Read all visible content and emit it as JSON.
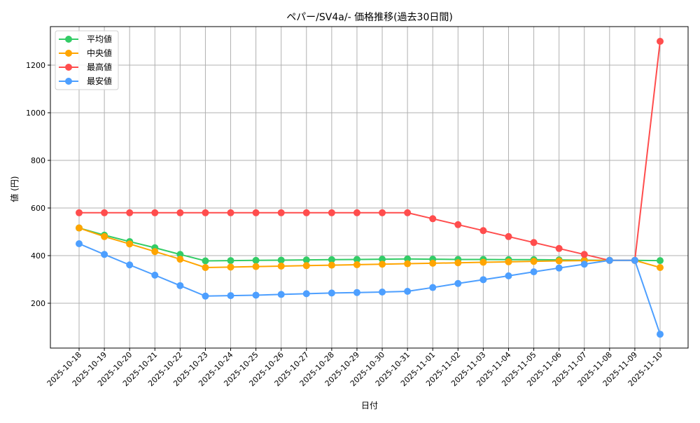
{
  "chart_data": {
    "type": "line",
    "title": "ペパー/SV4a/- 価格推移(過去30日間)",
    "xlabel": "日付",
    "ylabel": "値 (円)",
    "ylim": [
      30,
      1362
    ],
    "yticks": [
      200,
      400,
      600,
      800,
      1000,
      1200
    ],
    "grid": true,
    "legend_position": "upper left",
    "categories": [
      "2025-10-18",
      "2025-10-19",
      "2025-10-20",
      "2025-10-21",
      "2025-10-22",
      "2025-10-23",
      "2025-10-24",
      "2025-10-25",
      "2025-10-26",
      "2025-10-27",
      "2025-10-28",
      "2025-10-29",
      "2025-10-30",
      "2025-10-31",
      "2025-11-01",
      "2025-11-02",
      "2025-11-03",
      "2025-11-04",
      "2025-11-05",
      "2025-11-06",
      "2025-11-07",
      "2025-11-08",
      "2025-11-09",
      "2025-11-10"
    ],
    "series": [
      {
        "name": "平均値",
        "color": "#33cc66",
        "values": [
          516,
          486,
          459,
          433,
          405,
          378,
          379,
          380,
          381,
          382,
          383,
          384,
          385,
          386,
          385,
          384,
          384,
          383,
          383,
          382,
          381,
          380,
          380,
          379
        ]
      },
      {
        "name": "中央値",
        "color": "#ffa500",
        "values": [
          516,
          480,
          449,
          417,
          385,
          350,
          352,
          354,
          356,
          358,
          360,
          362,
          364,
          366,
          368,
          370,
          372,
          374,
          376,
          378,
          379,
          380,
          380,
          350
        ]
      },
      {
        "name": "最高値",
        "color": "#ff4d4d",
        "values": [
          580,
          580,
          580,
          580,
          580,
          580,
          580,
          580,
          580,
          580,
          580,
          580,
          580,
          580,
          555,
          530,
          505,
          480,
          455,
          430,
          405,
          380,
          380,
          1300
        ]
      },
      {
        "name": "最安値",
        "color": "#4d9fff",
        "values": [
          450,
          405,
          361,
          318,
          274,
          230,
          232,
          234,
          237,
          240,
          243,
          245,
          247,
          250,
          266,
          283,
          299,
          315,
          332,
          348,
          364,
          380,
          380,
          70
        ]
      }
    ]
  }
}
